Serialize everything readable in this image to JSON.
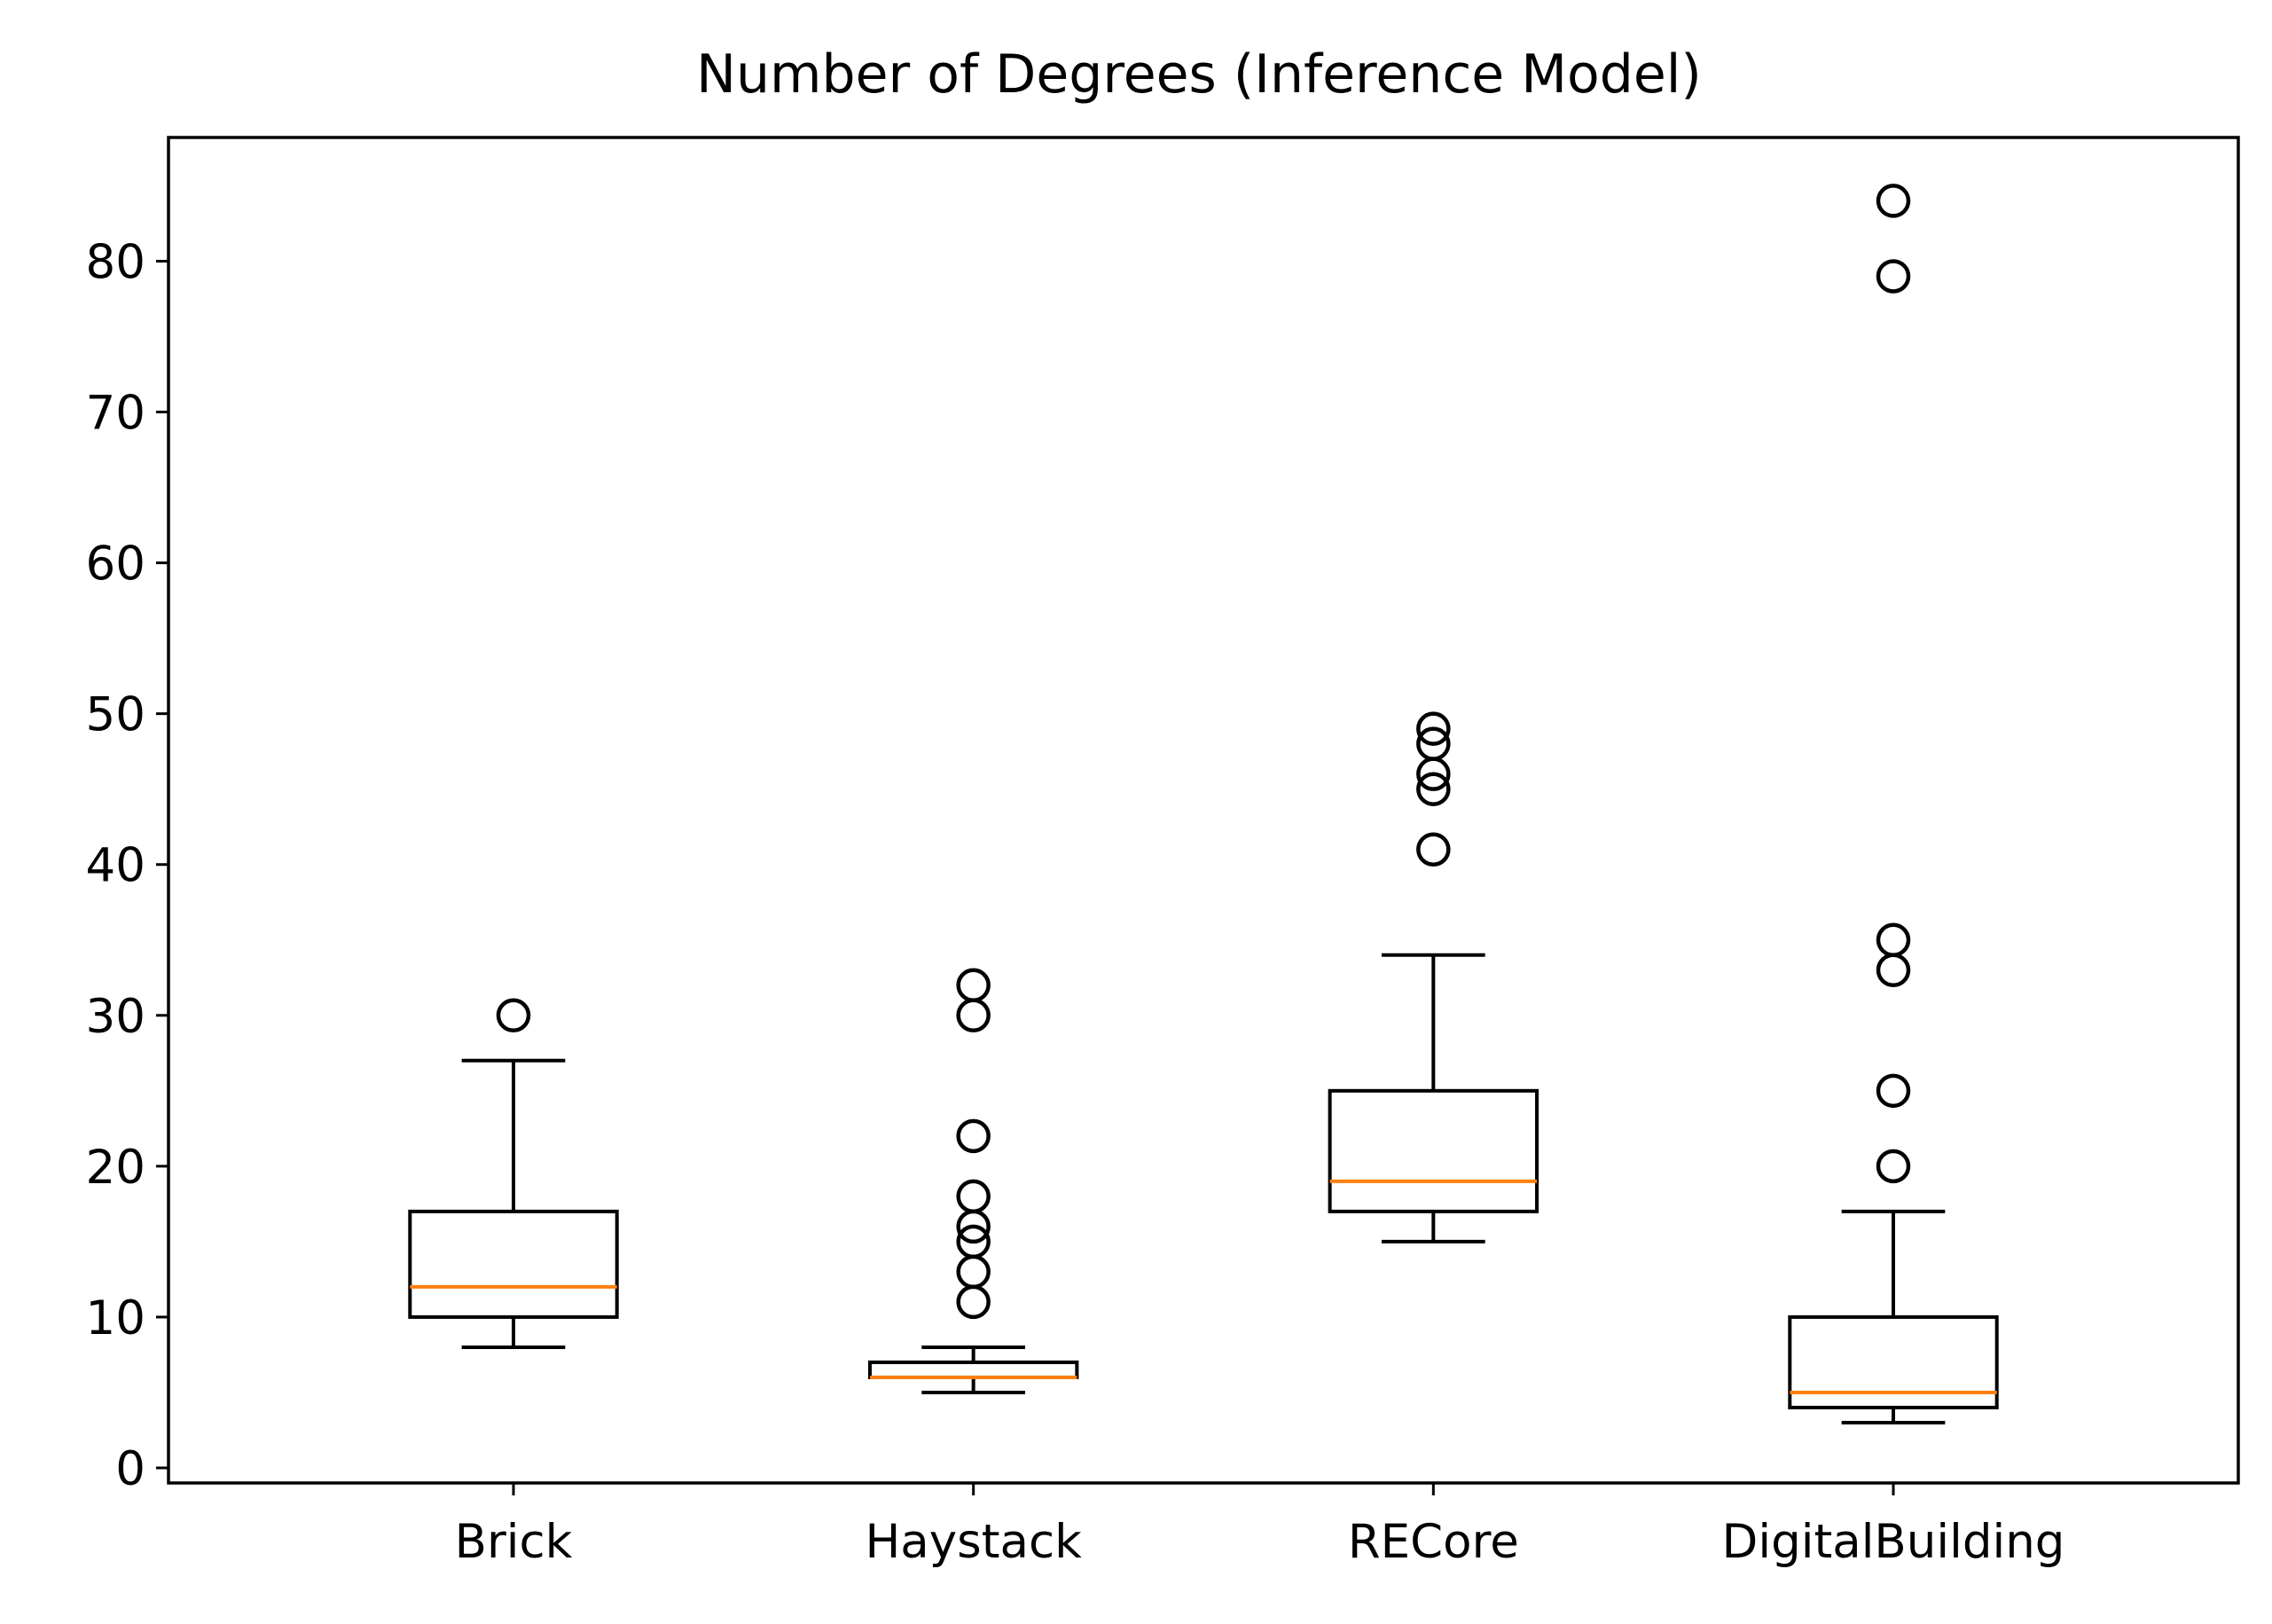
{
  "chart_data": {
    "type": "box",
    "title": "Number of Degrees (Inference Model)",
    "xlabel": "",
    "ylabel": "",
    "ylim": [
      -1,
      88.2
    ],
    "yticks": [
      0,
      10,
      20,
      30,
      40,
      50,
      60,
      70,
      80
    ],
    "grid": false,
    "median_color": "#ff7f0e",
    "box_color": "#000000",
    "categories": [
      "Brick",
      "Haystack",
      "RECore",
      "DigitalBuilding"
    ],
    "boxes": [
      {
        "name": "Brick",
        "whisker_low": 8,
        "q1": 10,
        "median": 12,
        "q3": 17,
        "whisker_high": 27,
        "fliers": [
          30
        ]
      },
      {
        "name": "Haystack",
        "whisker_low": 5,
        "q1": 6,
        "median": 6,
        "q3": 7,
        "whisker_high": 8,
        "fliers": [
          11,
          13,
          15,
          16,
          18,
          22,
          30,
          32
        ]
      },
      {
        "name": "RECore",
        "whisker_low": 15,
        "q1": 17,
        "median": 19,
        "q3": 25,
        "whisker_high": 34,
        "fliers": [
          41,
          45,
          46,
          48,
          49
        ]
      },
      {
        "name": "DigitalBuilding",
        "whisker_low": 3,
        "q1": 4,
        "median": 5,
        "q3": 10,
        "whisker_high": 17,
        "fliers": [
          20,
          25,
          33,
          35,
          79,
          84
        ]
      }
    ]
  }
}
